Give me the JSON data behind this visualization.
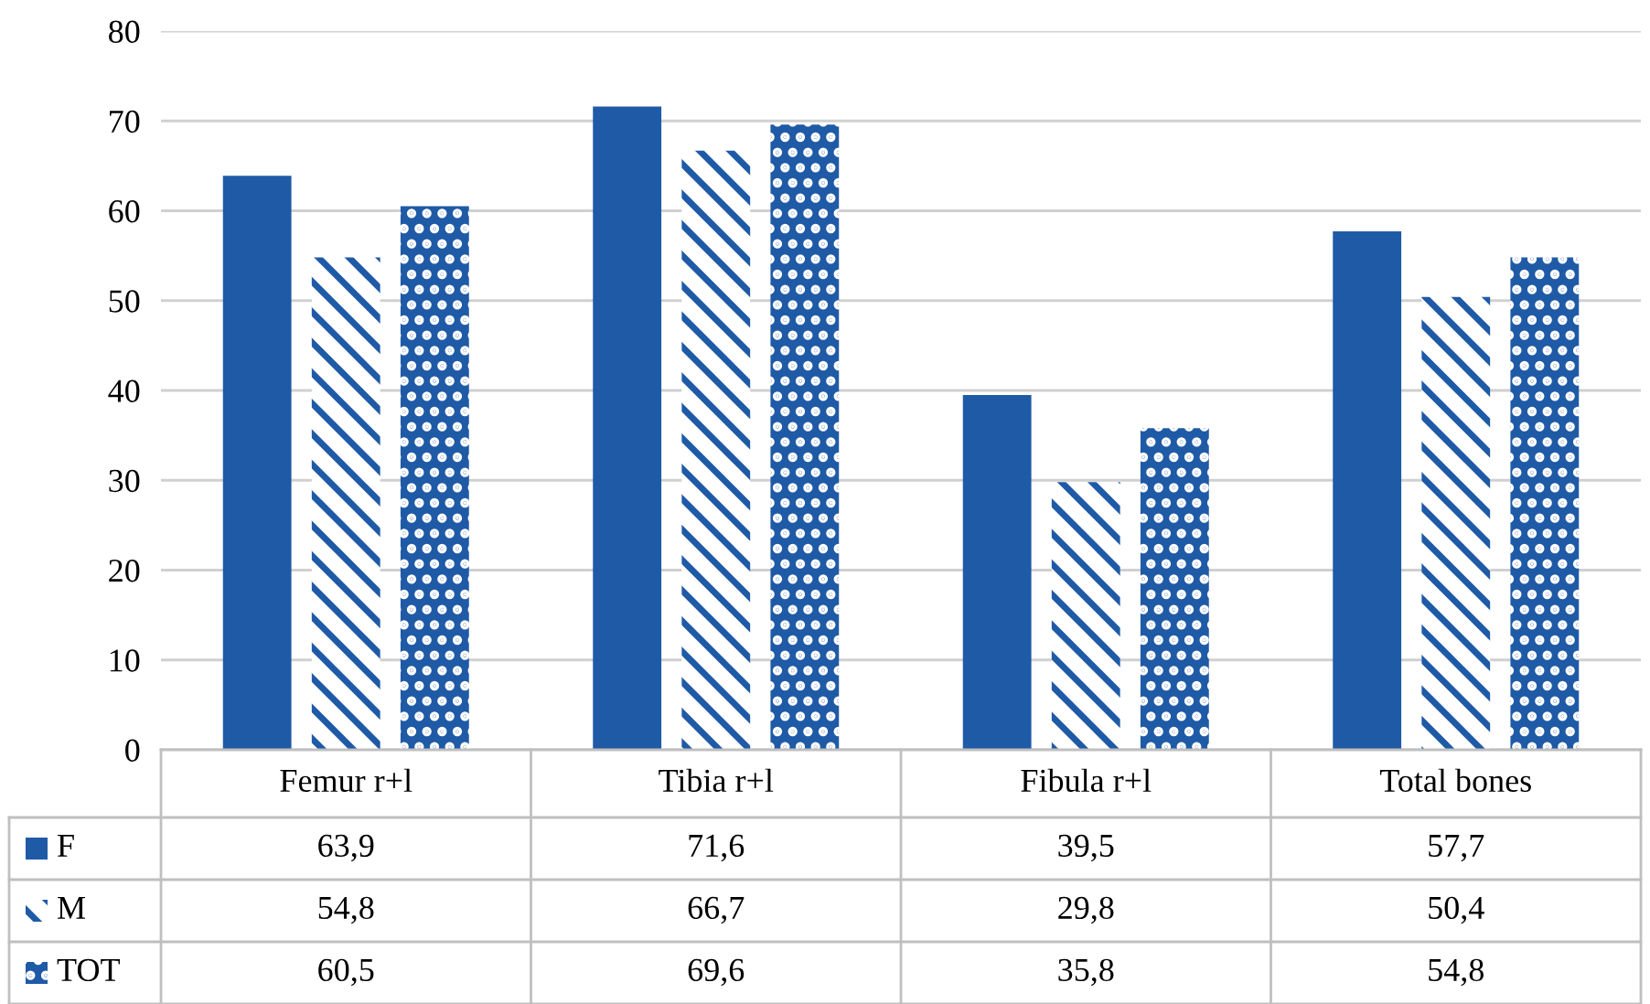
{
  "chart_data": {
    "type": "bar",
    "categories": [
      "Femur r+l",
      "Tibia r+l",
      "Fibula r+l",
      "Total bones"
    ],
    "series": [
      {
        "name": "F",
        "color": "#1f5aa6",
        "values": [
          63.9,
          71.6,
          39.5,
          57.7
        ],
        "value_labels": [
          "63,9",
          "71,6",
          "39,5",
          "57,7"
        ]
      },
      {
        "name": "M",
        "color": "#1f5aa6",
        "values": [
          54.8,
          66.7,
          29.8,
          50.4
        ],
        "value_labels": [
          "54,8",
          "66,7",
          "29,8",
          "50,4"
        ]
      },
      {
        "name": "TOT",
        "color": "#1f5aa6",
        "values": [
          60.5,
          69.6,
          35.8,
          54.8
        ],
        "value_labels": [
          "60,5",
          "69,6",
          "35,8",
          "54,8"
        ]
      }
    ],
    "ylim": [
      0,
      80
    ],
    "yticks": [
      0,
      10,
      20,
      30,
      40,
      50,
      60,
      70,
      80
    ],
    "grid": "y",
    "legend": "bottom"
  }
}
